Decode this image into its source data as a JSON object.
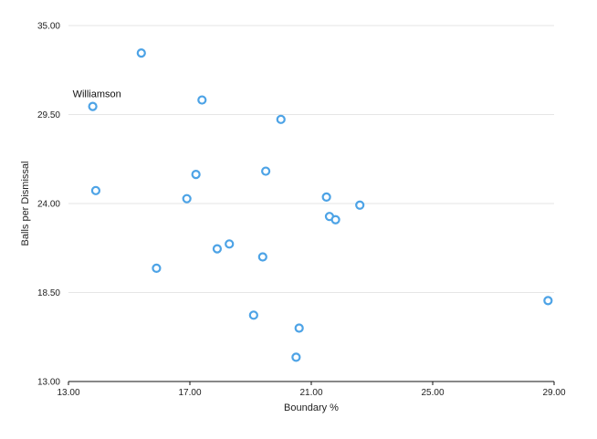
{
  "chart_data": {
    "type": "scatter",
    "title": "",
    "xlabel": "Boundary %",
    "ylabel": "Balls per Dismissal",
    "xlim": [
      13,
      29
    ],
    "ylim": [
      13,
      35
    ],
    "x_ticks": [
      13,
      17,
      21,
      25,
      29
    ],
    "x_tick_labels": [
      "13.00",
      "17.00",
      "21.00",
      "25.00",
      "29.00"
    ],
    "y_ticks": [
      13,
      18.5,
      24,
      29.5,
      35
    ],
    "y_tick_labels": [
      "13.00",
      "18.50",
      "24.00",
      "29.50",
      "35.00"
    ],
    "grid": "horizontal",
    "legend": "none",
    "point_color": "#4da3e6",
    "points": [
      {
        "x": 15.4,
        "y": 33.3
      },
      {
        "x": 13.8,
        "y": 30.0,
        "label": "Williamson"
      },
      {
        "x": 17.4,
        "y": 30.4
      },
      {
        "x": 20.0,
        "y": 29.2
      },
      {
        "x": 19.5,
        "y": 26.0
      },
      {
        "x": 17.2,
        "y": 25.8
      },
      {
        "x": 13.9,
        "y": 24.8
      },
      {
        "x": 16.9,
        "y": 24.3
      },
      {
        "x": 21.5,
        "y": 24.4
      },
      {
        "x": 22.6,
        "y": 23.9
      },
      {
        "x": 21.6,
        "y": 23.2
      },
      {
        "x": 21.8,
        "y": 23.0
      },
      {
        "x": 18.3,
        "y": 21.5
      },
      {
        "x": 17.9,
        "y": 21.2
      },
      {
        "x": 19.4,
        "y": 20.7
      },
      {
        "x": 15.9,
        "y": 20.0
      },
      {
        "x": 28.8,
        "y": 18.0
      },
      {
        "x": 19.1,
        "y": 17.1
      },
      {
        "x": 20.6,
        "y": 16.3
      },
      {
        "x": 20.5,
        "y": 14.5
      }
    ]
  }
}
